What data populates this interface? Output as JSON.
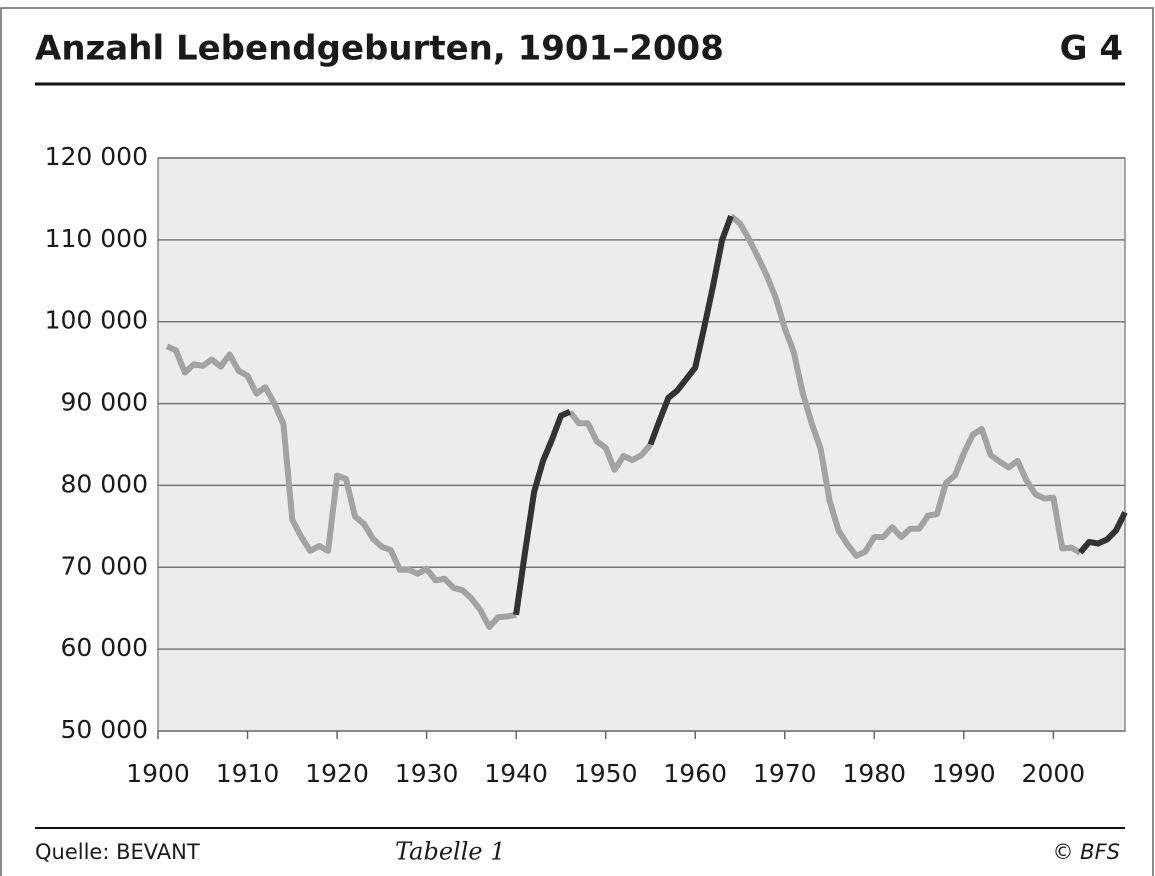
{
  "chart_data": {
    "type": "line",
    "title": "Anzahl Lebendgeburten, 1901–2008",
    "chart_id": "G 4",
    "source": "Quelle: BEVANT",
    "table_ref": "Tabelle 1",
    "copyright": "© BFS",
    "x": [
      1901,
      1902,
      1903,
      1904,
      1905,
      1906,
      1907,
      1908,
      1909,
      1910,
      1911,
      1912,
      1913,
      1914,
      1915,
      1916,
      1917,
      1918,
      1919,
      1920,
      1921,
      1922,
      1923,
      1924,
      1925,
      1926,
      1927,
      1928,
      1929,
      1930,
      1931,
      1932,
      1933,
      1934,
      1935,
      1936,
      1937,
      1938,
      1939,
      1940,
      1941,
      1942,
      1943,
      1944,
      1945,
      1946,
      1947,
      1948,
      1949,
      1950,
      1951,
      1952,
      1953,
      1954,
      1955,
      1956,
      1957,
      1958,
      1959,
      1960,
      1961,
      1962,
      1963,
      1964,
      1965,
      1966,
      1967,
      1968,
      1969,
      1970,
      1971,
      1972,
      1973,
      1974,
      1975,
      1976,
      1977,
      1978,
      1979,
      1980,
      1981,
      1982,
      1983,
      1984,
      1985,
      1986,
      1987,
      1988,
      1989,
      1990,
      1991,
      1992,
      1993,
      1994,
      1995,
      1996,
      1997,
      1998,
      1999,
      2000,
      2001,
      2002,
      2003,
      2004,
      2005,
      2006,
      2007,
      2008
    ],
    "series": [
      {
        "color": "#a3a3a3",
        "values": [
          97000,
          96500,
          93800,
          94800,
          94600,
          95400,
          94500,
          96000,
          94000,
          93400,
          91200,
          92000,
          90000,
          87500,
          75800,
          73700,
          72000,
          72600,
          72000,
          81200,
          80800,
          76200,
          75300,
          73500,
          72500,
          72100,
          69700,
          69700,
          69200,
          69800,
          68400,
          68600,
          67500,
          67200,
          66200,
          64800,
          62700,
          63900,
          64000,
          64200,
          null,
          null,
          null,
          null,
          null,
          89000,
          87600,
          87600,
          85400,
          84600,
          81900,
          83600,
          83100,
          83700,
          85000,
          null,
          null,
          null,
          null,
          null,
          null,
          null,
          null,
          112900,
          112000,
          110100,
          107900,
          105600,
          102900,
          99200,
          96300,
          91300,
          87600,
          84500,
          78200,
          74500,
          72800,
          71400,
          71900,
          73700,
          73700,
          74900,
          73700,
          74700,
          74700,
          76300,
          76500,
          80300,
          81200,
          83900,
          86200,
          86900,
          83700,
          82900,
          82200,
          83000,
          80600,
          78900,
          78400,
          78500,
          72300,
          72400,
          71800,
          null,
          null,
          null,
          null,
          null
        ]
      },
      {
        "color": "#333333",
        "values": [
          null,
          null,
          null,
          null,
          null,
          null,
          null,
          null,
          null,
          null,
          null,
          null,
          null,
          null,
          null,
          null,
          null,
          null,
          null,
          null,
          null,
          null,
          null,
          null,
          null,
          null,
          null,
          null,
          null,
          null,
          null,
          null,
          null,
          null,
          null,
          null,
          null,
          null,
          null,
          64200,
          71900,
          79200,
          83000,
          85600,
          88500,
          89000,
          null,
          null,
          null,
          null,
          null,
          null,
          null,
          null,
          85000,
          87900,
          90700,
          91600,
          93000,
          94400,
          99300,
          104400,
          110000,
          112900,
          null,
          null,
          null,
          null,
          null,
          null,
          null,
          null,
          null,
          null,
          null,
          null,
          null,
          null,
          null,
          null,
          null,
          null,
          null,
          null,
          null,
          null,
          null,
          null,
          null,
          null,
          null,
          null,
          null,
          null,
          null,
          null,
          null,
          null,
          null,
          null,
          null,
          null,
          71800,
          73100,
          72900,
          73400,
          74500,
          76700
        ]
      }
    ],
    "xlim": [
      1900,
      2008
    ],
    "xticks": [
      1900,
      1910,
      1920,
      1930,
      1940,
      1950,
      1960,
      1970,
      1980,
      1990,
      2000
    ],
    "ylim": [
      50000,
      120000
    ],
    "yticks": [
      {
        "value": 50000,
        "label": "50 000"
      },
      {
        "value": 60000,
        "label": "60 000"
      },
      {
        "value": 70000,
        "label": "70 000"
      },
      {
        "value": 80000,
        "label": "80 000"
      },
      {
        "value": 90000,
        "label": "90 000"
      },
      {
        "value": 100000,
        "label": "100 000"
      },
      {
        "value": 110000,
        "label": "110 000"
      },
      {
        "value": 120000,
        "label": "120 000"
      }
    ],
    "grid": true
  }
}
